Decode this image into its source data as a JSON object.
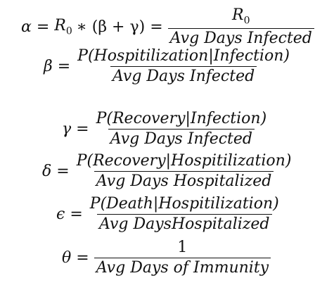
{
  "equations": {
    "alpha": {
      "lhs": "α",
      "eq1": "=",
      "expr_r": "R",
      "expr_r_sub": "0",
      "expr_rest": "∗ (β + γ)",
      "eq2": "=",
      "num_r": "R",
      "num_r_sub": "0",
      "den": "Avg Days Infected"
    },
    "beta": {
      "lhs": "β",
      "eq": "=",
      "num": "P(Hospitilization|Infection)",
      "den": "Avg Days Infected"
    },
    "gamma": {
      "lhs": "γ",
      "eq": "=",
      "num": "P(Recovery|Infection)",
      "den": "Avg Days Infected"
    },
    "delta": {
      "lhs": "δ",
      "eq": "=",
      "num": "P(Recovery|Hospitilization)",
      "den": "Avg Days Hospitalized"
    },
    "epsilon": {
      "lhs": "ϵ",
      "eq": "=",
      "num": "P(Death|Hospitilization)",
      "den": "Avg DaysHospitalized"
    },
    "theta": {
      "lhs": "θ",
      "eq": "=",
      "num": "1",
      "den": "Avg Days of Immunity"
    }
  }
}
